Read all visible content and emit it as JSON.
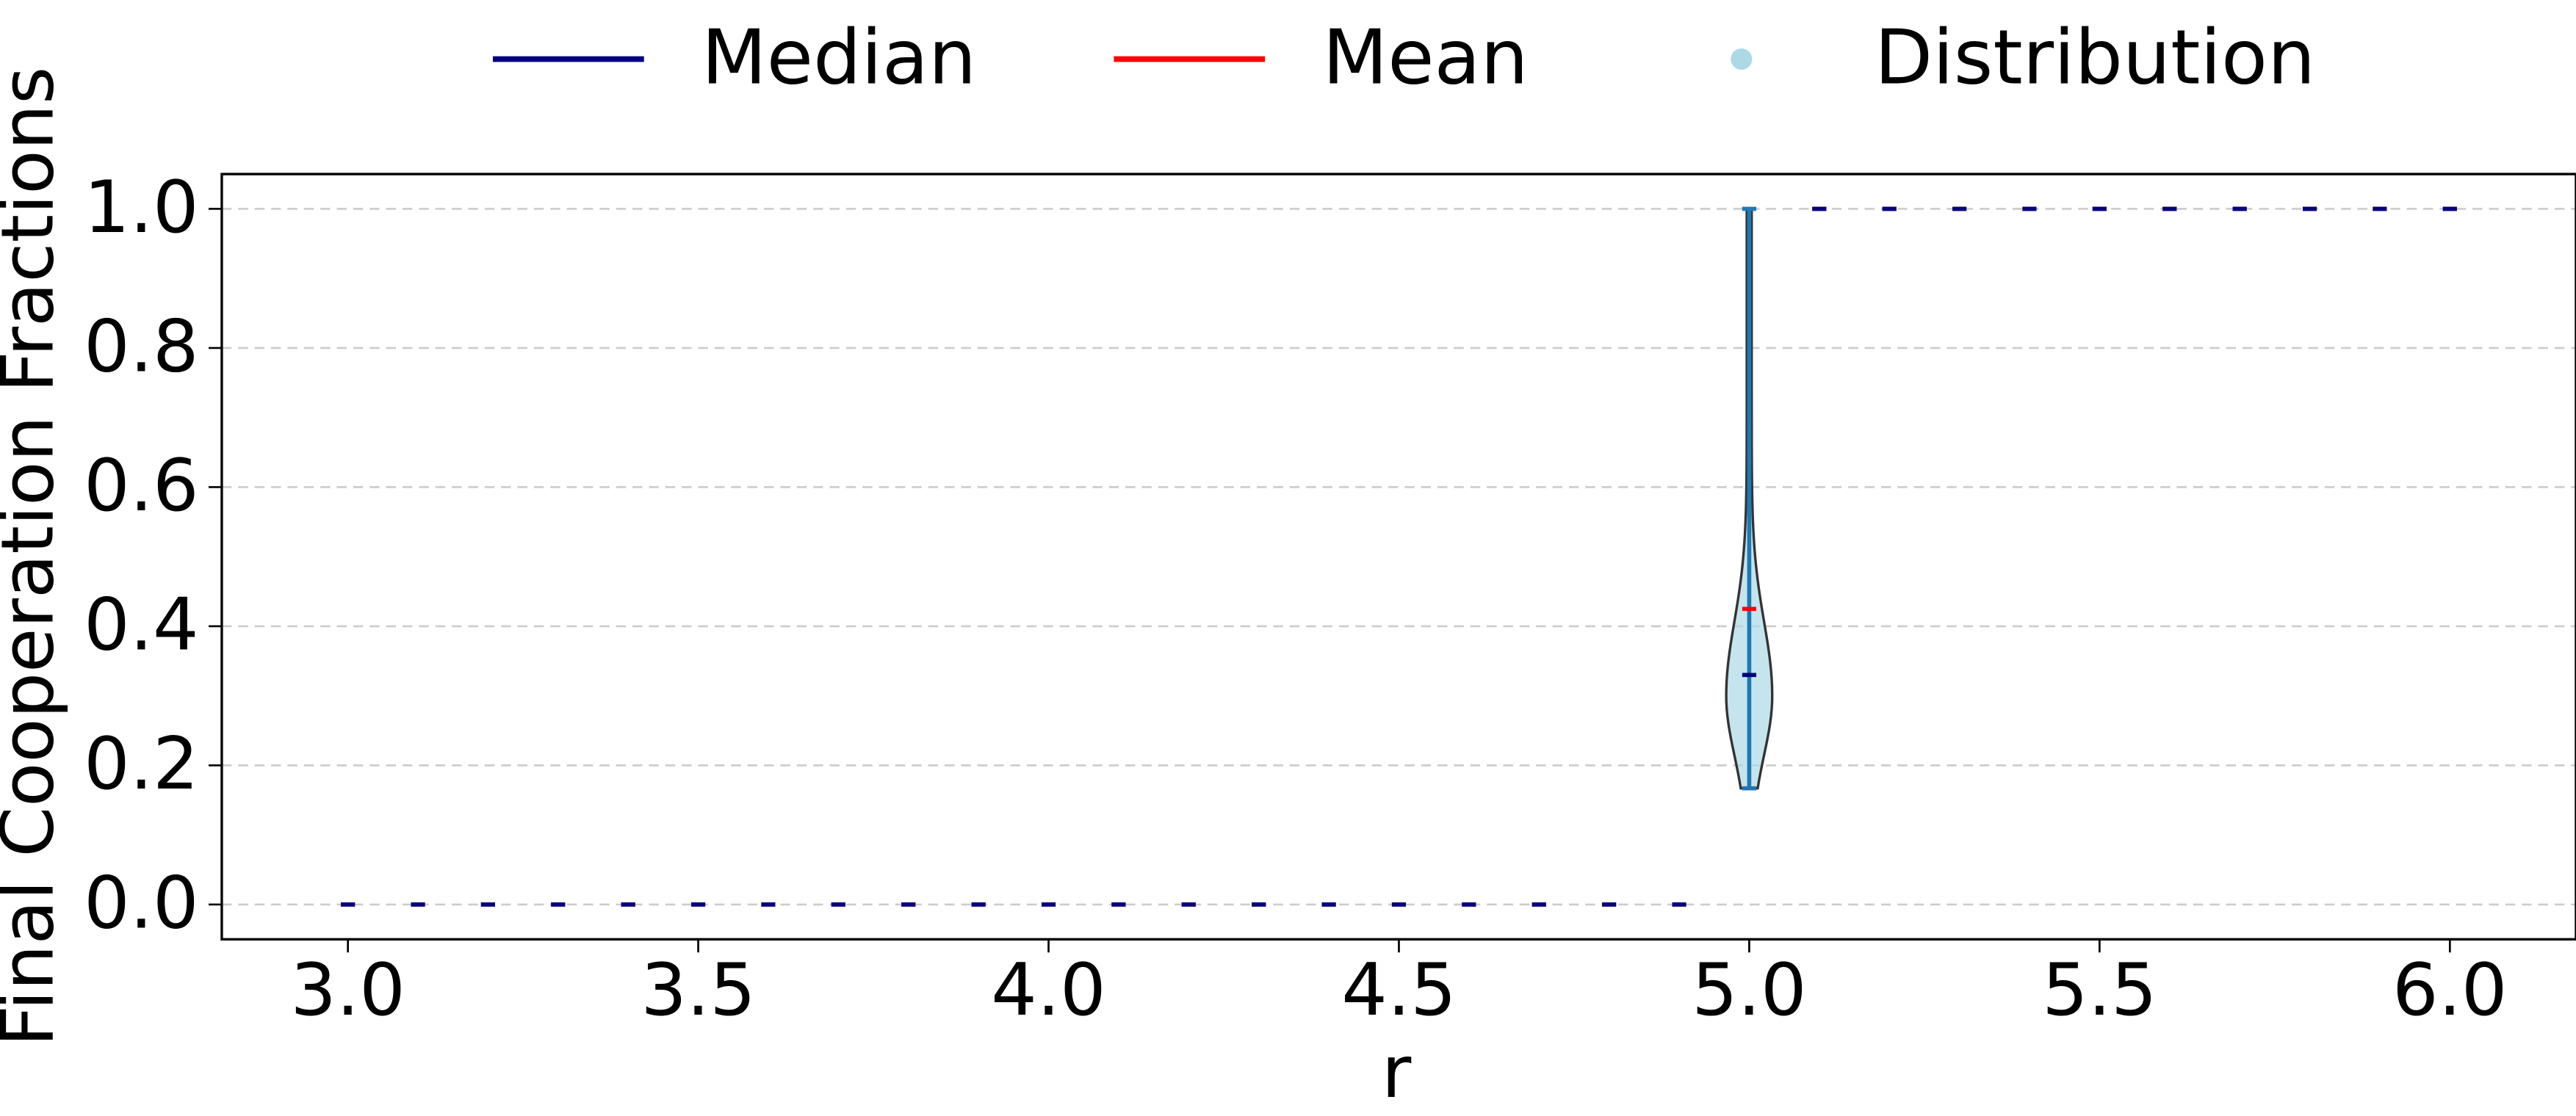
{
  "chart_data": {
    "type": "violin",
    "x_label": "r",
    "y_label": "Final Cooperation Fractions",
    "x": [
      3.0,
      3.1,
      3.2,
      3.3,
      3.4,
      3.5,
      3.6,
      3.7,
      3.8,
      3.9,
      4.0,
      4.1,
      4.2,
      4.3,
      4.4,
      4.5,
      4.6,
      4.7,
      4.8,
      4.9,
      5.0,
      5.1,
      5.2,
      5.3,
      5.4,
      5.5,
      5.6,
      5.7,
      5.8,
      5.9,
      6.0
    ],
    "series": [
      {
        "name": "Median",
        "color": "#000080",
        "values": [
          0,
          0,
          0,
          0,
          0,
          0,
          0,
          0,
          0,
          0,
          0,
          0,
          0,
          0,
          0,
          0,
          0,
          0,
          0,
          0,
          0.33,
          1,
          1,
          1,
          1,
          1,
          1,
          1,
          1,
          1,
          1
        ]
      },
      {
        "name": "Mean",
        "color": "#ff0000",
        "values": [
          0,
          0,
          0,
          0,
          0,
          0,
          0,
          0,
          0,
          0,
          0,
          0,
          0,
          0,
          0,
          0,
          0,
          0,
          0,
          0,
          0.425,
          1,
          1,
          1,
          1,
          1,
          1,
          1,
          1,
          1,
          1
        ]
      }
    ],
    "distribution": {
      "name": "Distribution",
      "color": "#add8e6",
      "edge_color": "#1f77b4",
      "mins": [
        0,
        0,
        0,
        0,
        0,
        0,
        0,
        0,
        0,
        0,
        0,
        0,
        0,
        0,
        0,
        0,
        0,
        0,
        0,
        0,
        0.167,
        1,
        1,
        1,
        1,
        1,
        1,
        1,
        1,
        1,
        1
      ],
      "maxs": [
        0,
        0,
        0,
        0,
        0,
        0,
        0,
        0,
        0,
        0,
        0,
        0,
        0,
        0,
        0,
        0,
        0,
        0,
        0,
        0,
        1,
        1,
        1,
        1,
        1,
        1,
        1,
        1,
        1,
        1,
        1
      ]
    },
    "xlim": [
      2.82,
      6.18
    ],
    "ylim": [
      -0.05,
      1.05
    ],
    "xticks": [
      {
        "value": 3,
        "label": "3.0"
      },
      {
        "value": 3.5,
        "label": "3.5"
      },
      {
        "value": 4,
        "label": "4.0"
      },
      {
        "value": 4.5,
        "label": "4.5"
      },
      {
        "value": 5,
        "label": "5.0"
      },
      {
        "value": 5.5,
        "label": "5.5"
      },
      {
        "value": 6,
        "label": "6.0"
      }
    ],
    "yticks": [
      {
        "value": 0,
        "label": "0.0"
      },
      {
        "value": 0.2,
        "label": "0.2"
      },
      {
        "value": 0.4,
        "label": "0.4"
      },
      {
        "value": 0.6,
        "label": "0.6"
      },
      {
        "value": 0.8,
        "label": "0.8"
      },
      {
        "value": 1,
        "label": "1.0"
      }
    ],
    "grid": true,
    "legend_position": "top"
  }
}
